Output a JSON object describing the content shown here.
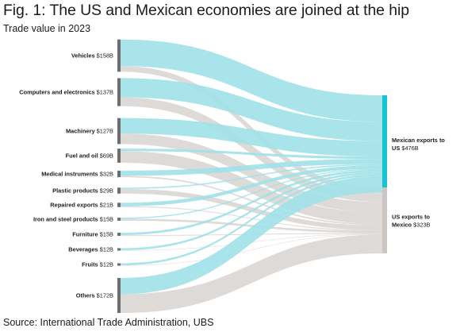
{
  "title": "Fig. 1: The US and Mexican economies are joined at the hip",
  "subtitle": "Trade value in 2023",
  "source": "Source: International Trade Administration, UBS",
  "colors": {
    "mexican_exports": "#9fe1e8",
    "us_exports": "#d8d3d1",
    "source_node": "#6d6d6d",
    "mexican_node": "#17c4d2",
    "us_node": "#ccc5c3"
  },
  "targets": [
    {
      "id": "mx",
      "label_line1": "Mexican exports to",
      "label_line2": "US",
      "value_label": "$476B"
    },
    {
      "id": "us",
      "label_line1": "US exports to",
      "label_line2": "Mexico",
      "value_label": "$323B"
    }
  ],
  "categories": [
    {
      "name": "Vehicles",
      "value_label": "$158B"
    },
    {
      "name": "Computers and electronics",
      "value_label": "$137B"
    },
    {
      "name": "Machinery",
      "value_label": "$127B"
    },
    {
      "name": "Fuel and oil",
      "value_label": "$69B"
    },
    {
      "name": "Medical instruments",
      "value_label": "$32B"
    },
    {
      "name": "Plastic products",
      "value_label": "$29B"
    },
    {
      "name": "Repaired exports",
      "value_label": "$21B"
    },
    {
      "name": "Iron and steel products",
      "value_label": "$15B"
    },
    {
      "name": "Furniture",
      "value_label": "$15B"
    },
    {
      "name": "Beverages",
      "value_label": "$12B"
    },
    {
      "name": "Fruits",
      "value_label": "$12B"
    },
    {
      "name": "Others",
      "value_label": "$172B"
    }
  ],
  "chart_data": {
    "type": "sankey",
    "units": "USD billions",
    "sources": [
      "Vehicles",
      "Computers and electronics",
      "Machinery",
      "Fuel and oil",
      "Medical instruments",
      "Plastic products",
      "Repaired exports",
      "Iron and steel products",
      "Furniture",
      "Beverages",
      "Fruits",
      "Others"
    ],
    "targets": [
      "Mexican exports to US",
      "US exports to Mexico"
    ],
    "source_totals": [
      158,
      137,
      127,
      69,
      32,
      29,
      21,
      15,
      15,
      12,
      12,
      172
    ],
    "target_totals": [
      476,
      323
    ],
    "flows": [
      {
        "source": "Vehicles",
        "to_mexican_exports": 130,
        "to_us_exports": 28
      },
      {
        "source": "Computers and electronics",
        "to_mexican_exports": 94,
        "to_us_exports": 43
      },
      {
        "source": "Machinery",
        "to_mexican_exports": 76,
        "to_us_exports": 51
      },
      {
        "source": "Fuel and oil",
        "to_mexican_exports": 12,
        "to_us_exports": 57
      },
      {
        "source": "Medical instruments",
        "to_mexican_exports": 25,
        "to_us_exports": 7
      },
      {
        "source": "Plastic products",
        "to_mexican_exports": 6,
        "to_us_exports": 23
      },
      {
        "source": "Repaired exports",
        "to_mexican_exports": 17,
        "to_us_exports": 4
      },
      {
        "source": "Iron and steel products",
        "to_mexican_exports": 5,
        "to_us_exports": 10
      },
      {
        "source": "Furniture",
        "to_mexican_exports": 11,
        "to_us_exports": 4
      },
      {
        "source": "Beverages",
        "to_mexican_exports": 10,
        "to_us_exports": 2
      },
      {
        "source": "Fruits",
        "to_mexican_exports": 10,
        "to_us_exports": 2
      },
      {
        "source": "Others",
        "to_mexican_exports": 80,
        "to_us_exports": 92
      }
    ]
  }
}
